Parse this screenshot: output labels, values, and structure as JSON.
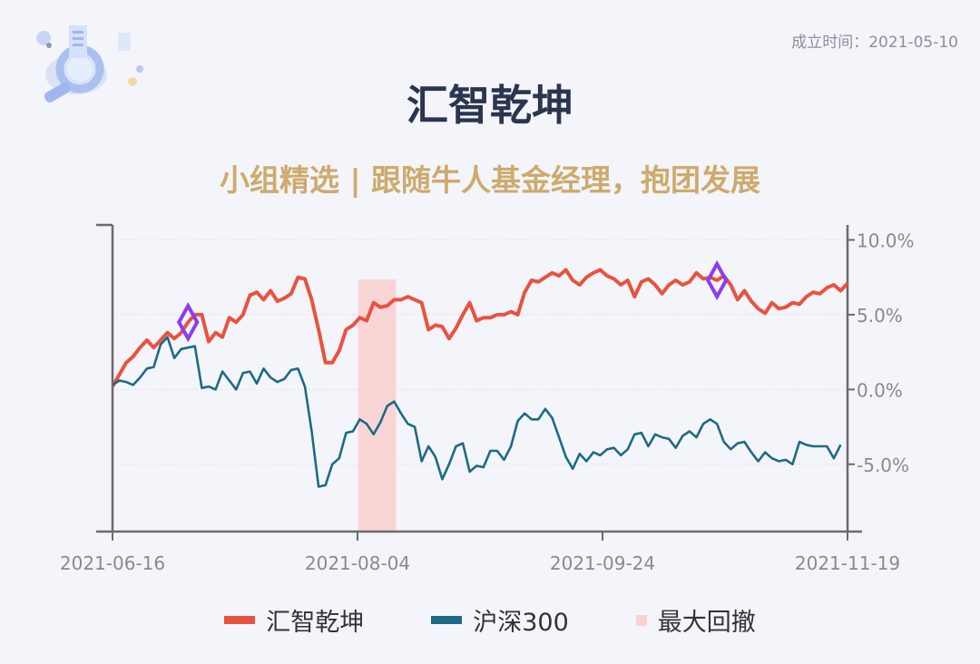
{
  "header": {
    "established_label": "成立时间：2021-05-10",
    "title": "汇智乾坤",
    "subtitle": "小组精选 | 跟随牛人基金经理，抱团发展"
  },
  "colors": {
    "fund": "#e8533f",
    "index": "#1d6b84",
    "drawdown": "#fbd1d1",
    "marker": "#8a3df0",
    "axis": "#6b6b6b"
  },
  "legend": [
    {
      "label": "汇智乾坤",
      "color": "#e8533f"
    },
    {
      "label": "沪深300",
      "color": "#1d6b84"
    },
    {
      "label": "最大回撤",
      "color": "#fbd1d1"
    }
  ],
  "chart_data": {
    "type": "line",
    "x_ticks": [
      "2021-06-16",
      "2021-08-04",
      "2021-09-24",
      "2021-11-19"
    ],
    "y_ticks": [
      "10.0%",
      "5.0%",
      "0.0%",
      "-5.0%"
    ],
    "ylim": [
      -9.5,
      11.0
    ],
    "y_tick_values": [
      10,
      5,
      0,
      -5
    ],
    "grid": true,
    "max_drawdown_range": [
      36,
      41
    ],
    "markers": [
      11,
      88
    ],
    "series": [
      {
        "name": "汇智乾坤",
        "values": [
          0.2,
          1.0,
          1.8,
          2.2,
          2.8,
          3.3,
          2.8,
          3.3,
          3.8,
          3.4,
          3.8,
          4.5,
          5.0,
          5.0,
          3.2,
          3.8,
          3.5,
          4.8,
          4.5,
          5.0,
          6.3,
          6.5,
          6.0,
          6.6,
          5.9,
          6.1,
          6.4,
          7.5,
          7.4,
          6.0,
          4.0,
          1.8,
          1.8,
          2.6,
          4.0,
          4.3,
          4.8,
          4.6,
          5.8,
          5.5,
          5.6,
          6.0,
          6.0,
          6.2,
          6.0,
          5.8,
          4.0,
          4.3,
          4.2,
          3.4,
          4.1,
          5.0,
          5.8,
          4.6,
          4.8,
          4.8,
          5.0,
          5.0,
          5.2,
          5.0,
          6.5,
          7.3,
          7.2,
          7.5,
          7.8,
          7.6,
          8.0,
          7.3,
          7.0,
          7.5,
          7.8,
          8.0,
          7.6,
          7.4,
          7.0,
          7.3,
          6.2,
          7.2,
          7.4,
          7.0,
          6.4,
          7.0,
          7.3,
          7.0,
          7.2,
          7.8,
          7.4,
          7.5,
          7.3,
          7.6,
          7.0,
          6.0,
          6.6,
          5.9,
          5.4,
          5.1,
          5.8,
          5.4,
          5.5,
          5.8,
          5.7,
          6.2,
          6.5,
          6.4,
          6.8,
          7.0,
          6.6,
          7.1
        ]
      },
      {
        "name": "沪深300",
        "values": [
          0.3,
          0.6,
          0.5,
          0.3,
          0.8,
          1.4,
          1.5,
          3.0,
          3.5,
          2.1,
          2.7,
          2.8,
          2.9,
          0.1,
          0.2,
          0.0,
          1.2,
          0.6,
          0.0,
          1.1,
          1.2,
          0.4,
          1.4,
          0.8,
          0.5,
          0.7,
          1.3,
          1.4,
          0.2,
          -2.8,
          -6.5,
          -6.4,
          -5.0,
          -4.6,
          -2.9,
          -2.8,
          -2.0,
          -2.3,
          -3.0,
          -2.2,
          -1.1,
          -0.8,
          -1.6,
          -2.3,
          -2.5,
          -4.8,
          -3.8,
          -4.5,
          -6.0,
          -5.0,
          -3.8,
          -3.6,
          -5.5,
          -5.1,
          -5.2,
          -4.1,
          -4.1,
          -4.7,
          -3.8,
          -2.1,
          -1.6,
          -2.0,
          -2.0,
          -1.3,
          -1.9,
          -3.2,
          -4.5,
          -5.3,
          -4.3,
          -4.8,
          -4.2,
          -4.4,
          -4.0,
          -3.9,
          -4.4,
          -4.0,
          -3.0,
          -2.9,
          -3.8,
          -3.0,
          -3.2,
          -3.3,
          -3.9,
          -3.1,
          -2.8,
          -3.2,
          -2.3,
          -2.0,
          -2.3,
          -3.5,
          -4.0,
          -3.6,
          -3.5,
          -4.2,
          -4.8,
          -4.2,
          -4.6,
          -4.8,
          -4.7,
          -5.0,
          -3.5,
          -3.7,
          -3.8,
          -3.8,
          -3.8,
          -4.6,
          -3.7
        ]
      }
    ]
  }
}
